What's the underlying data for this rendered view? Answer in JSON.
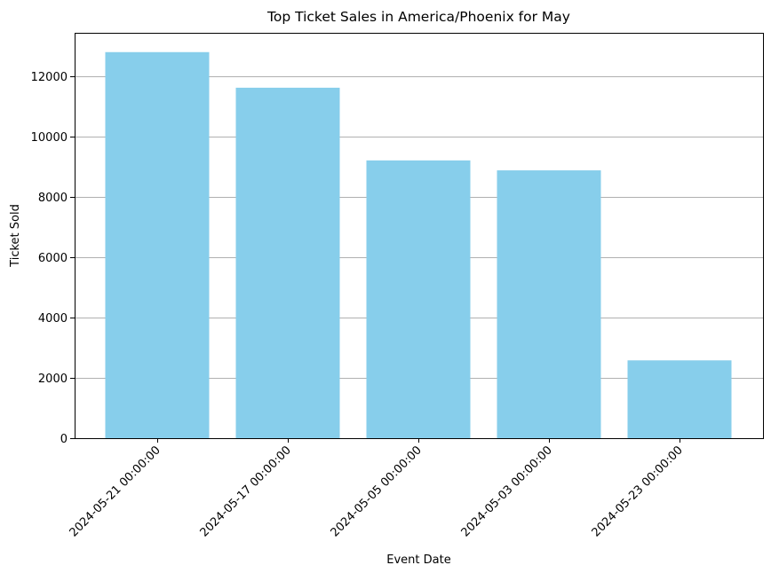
{
  "chart_data": {
    "type": "bar",
    "title": "Top Ticket Sales in America/Phoenix for May",
    "xlabel": "Event Date",
    "ylabel": "Ticket Sold",
    "categories": [
      "2024-05-21 00:00:00",
      "2024-05-17 00:00:00",
      "2024-05-05 00:00:00",
      "2024-05-03 00:00:00",
      "2024-05-23 00:00:00"
    ],
    "values": [
      12800,
      11620,
      9210,
      8880,
      2580
    ],
    "ylim": [
      0,
      13440
    ],
    "yticks": [
      0,
      2000,
      4000,
      6000,
      8000,
      10000,
      12000
    ],
    "ytick_labels": [
      "0",
      "2000",
      "4000",
      "6000",
      "8000",
      "10000",
      "12000"
    ],
    "grid": "y",
    "legend": "none",
    "bar_color": "#87ceeb",
    "grid_color": "#b0b0b0",
    "x_tick_rotation": 45
  }
}
